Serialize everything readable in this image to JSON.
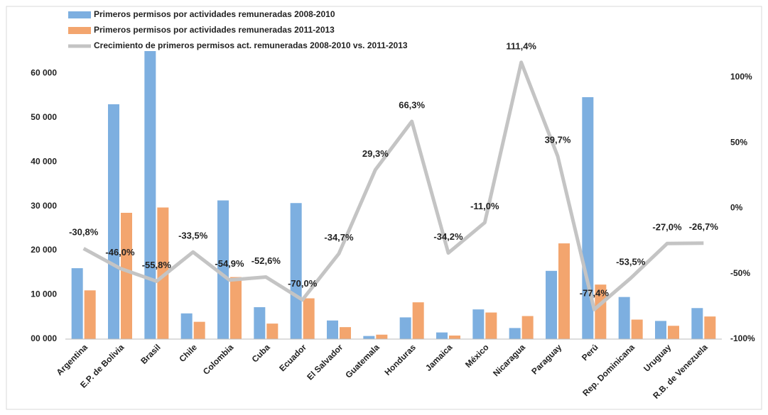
{
  "chart_data": {
    "type": "bar-line",
    "categories": [
      "Argentina",
      "E.P. de Bolivia",
      "Brasil",
      "Chile",
      "Colombia",
      "Cuba",
      "Ecuador",
      "El Salvador",
      "Guatemala",
      "Honduras",
      "Jamaica",
      "México",
      "Nicaragua",
      "Paraguay",
      "Perú",
      "Rep. Dominicana",
      "Uruguay",
      "R.B. de Venezuela"
    ],
    "series": [
      {
        "name": "Primeros permisos por actividades remuneradas  2008-2010",
        "color": "#7dafe0",
        "values": [
          16000,
          53000,
          65000,
          5800,
          31300,
          7200,
          30700,
          4200,
          700,
          4900,
          1500,
          6700,
          2500,
          15400,
          54600,
          9500,
          4100,
          7000
        ]
      },
      {
        "name": "Primeros permisos por actividades remuneradas  2011-2013",
        "color": "#f3a56e",
        "values": [
          11000,
          28500,
          29700,
          3900,
          14000,
          3500,
          9200,
          2700,
          1000,
          8300,
          800,
          6000,
          5200,
          21600,
          12300,
          4400,
          3000,
          5100
        ]
      },
      {
        "name": "Crecimiento de primeros permisos act. remuneradas 2008-2010 vs. 2011-2013",
        "color": "#c4c4c4",
        "axis": "y2",
        "values": [
          -30.8,
          -46.0,
          -55.8,
          -33.5,
          -54.9,
          -52.6,
          -70.0,
          -34.7,
          29.3,
          66.3,
          -34.2,
          -11.0,
          111.4,
          39.7,
          -77.4,
          -53.5,
          -27.0,
          -26.7
        ],
        "value_labels": [
          "-30,8%",
          "-46,0%",
          "-55,8%",
          "-33,5%",
          "-54,9%",
          "-52,6%",
          "-70,0%",
          "-34,7%",
          "29,3%",
          "66,3%",
          "-34,2%",
          "-11,0%",
          "111,4%",
          "39,7%",
          "-77,4%",
          "-53,5%",
          "-27,0%",
          "-26,7%"
        ]
      }
    ],
    "ylim": [
      0,
      65000
    ],
    "yticks": [
      {
        "value": 0,
        "label": "00 000"
      },
      {
        "value": 10000,
        "label": "10 000"
      },
      {
        "value": 20000,
        "label": "20 000"
      },
      {
        "value": 30000,
        "label": "30 000"
      },
      {
        "value": 40000,
        "label": "40 000"
      },
      {
        "value": 50000,
        "label": "50 000"
      },
      {
        "value": 60000,
        "label": "60 000"
      }
    ],
    "y2lim": [
      -100,
      120
    ],
    "y2ticks": [
      {
        "value": -100,
        "label": "-100%"
      },
      {
        "value": -50,
        "label": "-50%"
      },
      {
        "value": 0,
        "label": "0%"
      },
      {
        "value": 50,
        "label": "50%"
      },
      {
        "value": 100,
        "label": "100%"
      }
    ]
  }
}
